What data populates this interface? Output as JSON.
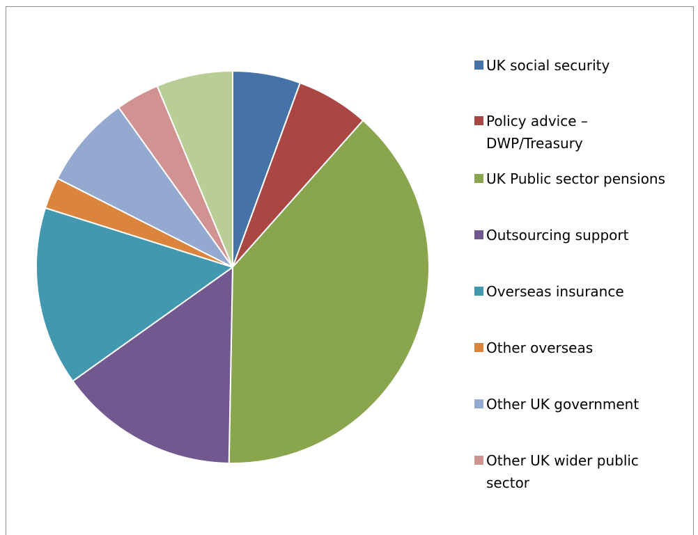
{
  "chart_data": {
    "type": "pie",
    "title": "",
    "legend_position": "right",
    "slices": [
      {
        "label": "UK social security",
        "value": 5.6,
        "color": "#4572A7"
      },
      {
        "label": "Policy advice – DWP/Treasury",
        "value": 6.0,
        "color": "#AA4643"
      },
      {
        "label": "UK Public sector pensions",
        "value": 38.9,
        "color": "#89A54E"
      },
      {
        "label": "Outsourcing support",
        "value": 14.9,
        "color": "#71588F"
      },
      {
        "label": "Overseas insurance",
        "value": 14.8,
        "color": "#4198AF"
      },
      {
        "label": "Other overseas",
        "value": 2.6,
        "color": "#DB843D"
      },
      {
        "label": "Other UK government",
        "value": 7.7,
        "color": "#93A9CF"
      },
      {
        "label": "Other UK wider public sector",
        "value": 3.6,
        "color": "#D19392"
      },
      {
        "label": "",
        "value": 6.3,
        "color": "#B9CD96"
      }
    ]
  },
  "legend": {
    "items": [
      {
        "lines": [
          "UK social security"
        ],
        "color": "#4572A7"
      },
      {
        "lines": [
          "Policy advice –",
          "DWP/Treasury"
        ],
        "color": "#AA4643"
      },
      {
        "lines": [
          "UK Public sector pensions"
        ],
        "color": "#89A54E"
      },
      {
        "lines": [
          "Outsourcing support"
        ],
        "color": "#71588F"
      },
      {
        "lines": [
          "Overseas insurance"
        ],
        "color": "#4198AF"
      },
      {
        "lines": [
          "Other overseas"
        ],
        "color": "#DB843D"
      },
      {
        "lines": [
          "Other UK government"
        ],
        "color": "#93A9CF"
      },
      {
        "lines": [
          "Other UK wider public",
          "sector"
        ],
        "color": "#D19392"
      }
    ]
  }
}
